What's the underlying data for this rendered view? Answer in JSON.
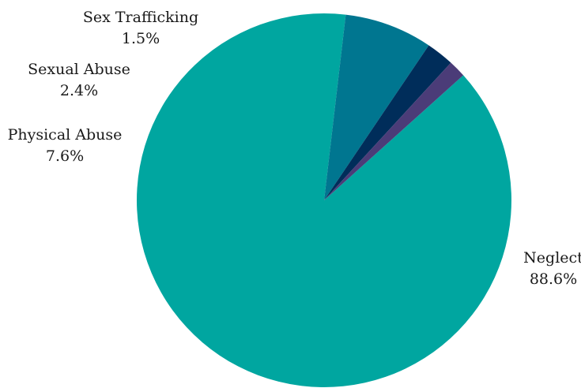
{
  "chart_data": {
    "type": "pie",
    "title": "",
    "labels": [
      "Neglect",
      "Physical Abuse",
      "Sexual Abuse",
      "Sex Trafficking"
    ],
    "values": [
      88.6,
      7.6,
      2.4,
      1.5
    ],
    "value_labels": [
      "88.6%",
      "7.6%",
      "2.4%",
      "1.5%"
    ],
    "colors": [
      "#00A6A0",
      "#007690",
      "#002D5A",
      "#4B3C78"
    ],
    "legend": "none",
    "label_placement": "outside"
  }
}
